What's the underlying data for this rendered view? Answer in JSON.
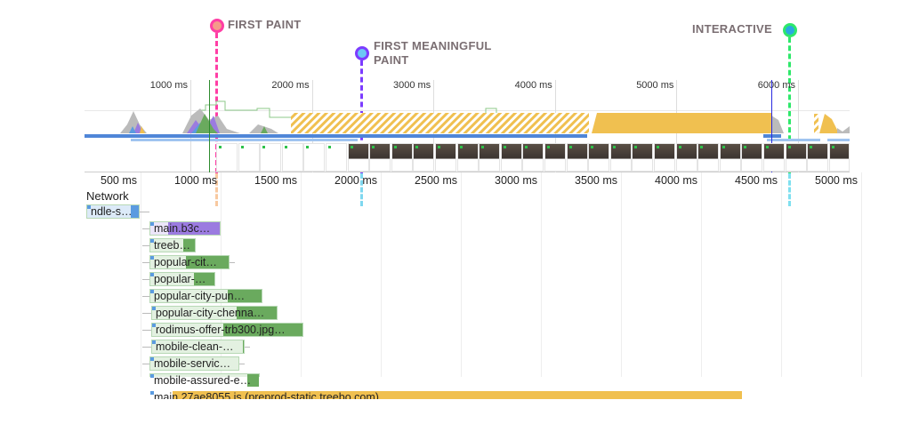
{
  "milestones": {
    "first_paint": "FIRST PAINT",
    "first_meaningful_paint_1": "FIRST MEANINGFUL",
    "first_meaningful_paint_2": "PAINT",
    "interactive": "INTERACTIVE"
  },
  "overview_ticks": [
    "1000 ms",
    "2000 ms",
    "3000 ms",
    "4000 ms",
    "5000 ms",
    "6000 ms"
  ],
  "main_ticks": [
    "500 ms",
    "1000 ms",
    "1500 ms",
    "2000 ms",
    "2500 ms",
    "3000 ms",
    "3500 ms",
    "4000 ms",
    "4500 ms",
    "5000 ms"
  ],
  "network": {
    "title": "Network",
    "requests": [
      {
        "label": "ndle-s…"
      },
      {
        "label": "main.b3c…"
      },
      {
        "label": "treeb…"
      },
      {
        "label": "popular-cit…"
      },
      {
        "label": "popular-…"
      },
      {
        "label": "popular-city-pun…"
      },
      {
        "label": "popular-city-chenna…"
      },
      {
        "label": "rodimus-offer-trb300.jpg…"
      },
      {
        "label": "mobile-clean-…"
      },
      {
        "label": "mobile-servic…"
      },
      {
        "label": "mobile-assured-e…"
      },
      {
        "label": "main.27ae8055.js (preprod-static.treebo.com)"
      }
    ]
  },
  "colors": {
    "first_paint": "#ff3ea5",
    "fmp": "#7c3cff",
    "interactive": "#2ee86a",
    "script": "#f0c050",
    "image": "#6aaa5e",
    "css": "#9b7be0",
    "doc": "#5b9be0"
  }
}
